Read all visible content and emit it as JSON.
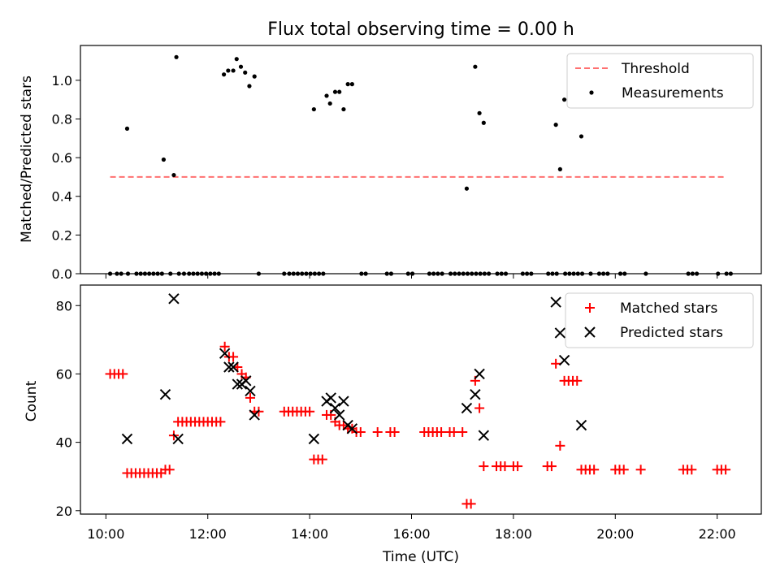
{
  "title": "Flux total observing time = 0.00 h",
  "colors": {
    "threshold": "#ff7070",
    "measurement": "#000000",
    "matched": "#ff0000",
    "predicted": "#000000"
  },
  "chart_data": [
    {
      "type": "scatter",
      "ylabel": "Matched/Predicted stars",
      "xlim": [
        "09:30",
        "22:52"
      ],
      "ylim": [
        0,
        1.18
      ],
      "yticks": [
        "0.0",
        "0.2",
        "0.4",
        "0.6",
        "0.8",
        "1.0"
      ],
      "grid": false,
      "legend_position": "top-right",
      "threshold": {
        "name": "Threshold",
        "value": 0.5,
        "x": [
          "10:05",
          "22:10"
        ],
        "style": "dashed"
      },
      "series": [
        {
          "name": "Measurements",
          "points": [
            [
              "10:05",
              0
            ],
            [
              "10:13",
              0
            ],
            [
              "10:18",
              0
            ],
            [
              "10:26",
              0
            ],
            [
              "10:36",
              0
            ],
            [
              "10:41",
              0
            ],
            [
              "10:46",
              0
            ],
            [
              "10:51",
              0
            ],
            [
              "10:56",
              0
            ],
            [
              "11:01",
              0
            ],
            [
              "11:06",
              0
            ],
            [
              "11:16",
              0
            ],
            [
              "11:26",
              0
            ],
            [
              "11:32",
              0
            ],
            [
              "11:38",
              0
            ],
            [
              "11:43",
              0
            ],
            [
              "11:48",
              0
            ],
            [
              "11:53",
              0
            ],
            [
              "11:58",
              0
            ],
            [
              "12:03",
              0
            ],
            [
              "12:08",
              0
            ],
            [
              "12:13",
              0
            ],
            [
              "13:00",
              0
            ],
            [
              "13:30",
              0
            ],
            [
              "13:36",
              0
            ],
            [
              "13:41",
              0
            ],
            [
              "13:46",
              0
            ],
            [
              "13:51",
              0
            ],
            [
              "13:56",
              0
            ],
            [
              "14:01",
              0
            ],
            [
              "14:06",
              0
            ],
            [
              "14:11",
              0
            ],
            [
              "14:16",
              0
            ],
            [
              "15:01",
              0
            ],
            [
              "15:06",
              0
            ],
            [
              "15:31",
              0
            ],
            [
              "15:36",
              0
            ],
            [
              "15:56",
              0
            ],
            [
              "16:01",
              0
            ],
            [
              "16:21",
              0
            ],
            [
              "16:26",
              0
            ],
            [
              "16:31",
              0
            ],
            [
              "16:36",
              0
            ],
            [
              "16:46",
              0
            ],
            [
              "16:51",
              0
            ],
            [
              "16:56",
              0
            ],
            [
              "17:01",
              0
            ],
            [
              "17:06",
              0
            ],
            [
              "17:11",
              0
            ],
            [
              "17:16",
              0
            ],
            [
              "17:21",
              0
            ],
            [
              "17:26",
              0
            ],
            [
              "17:31",
              0
            ],
            [
              "17:41",
              0
            ],
            [
              "17:46",
              0
            ],
            [
              "17:51",
              0
            ],
            [
              "18:11",
              0
            ],
            [
              "18:16",
              0
            ],
            [
              "18:21",
              0
            ],
            [
              "18:41",
              0
            ],
            [
              "18:46",
              0
            ],
            [
              "18:51",
              0
            ],
            [
              "19:01",
              0
            ],
            [
              "19:06",
              0
            ],
            [
              "19:11",
              0
            ],
            [
              "19:16",
              0
            ],
            [
              "19:21",
              0
            ],
            [
              "19:31",
              0
            ],
            [
              "19:41",
              0
            ],
            [
              "19:46",
              0
            ],
            [
              "19:51",
              0
            ],
            [
              "20:06",
              0
            ],
            [
              "20:11",
              0
            ],
            [
              "20:36",
              0
            ],
            [
              "21:26",
              0
            ],
            [
              "21:31",
              0
            ],
            [
              "21:36",
              0
            ],
            [
              "22:01",
              0
            ],
            [
              "22:11",
              0
            ],
            [
              "22:16",
              0
            ],
            [
              "10:25",
              0.75
            ],
            [
              "11:08",
              0.59
            ],
            [
              "11:20",
              0.51
            ],
            [
              "11:23",
              1.12
            ],
            [
              "12:19",
              1.03
            ],
            [
              "12:24",
              1.05
            ],
            [
              "12:30",
              1.05
            ],
            [
              "12:34",
              1.11
            ],
            [
              "12:39",
              1.07
            ],
            [
              "12:44",
              1.04
            ],
            [
              "12:49",
              0.97
            ],
            [
              "12:55",
              1.02
            ],
            [
              "14:05",
              0.85
            ],
            [
              "14:20",
              0.92
            ],
            [
              "14:24",
              0.88
            ],
            [
              "14:30",
              0.94
            ],
            [
              "14:35",
              0.94
            ],
            [
              "14:40",
              0.85
            ],
            [
              "14:45",
              0.98
            ],
            [
              "14:50",
              0.98
            ],
            [
              "17:05",
              0.44
            ],
            [
              "17:15",
              1.07
            ],
            [
              "17:20",
              0.83
            ],
            [
              "17:25",
              0.78
            ],
            [
              "18:50",
              0.77
            ],
            [
              "18:55",
              0.54
            ],
            [
              "19:00",
              0.9
            ],
            [
              "19:20",
              0.71
            ]
          ]
        }
      ]
    },
    {
      "type": "scatter",
      "xlabel": "Time (UTC)",
      "ylabel": "Count",
      "xlim": [
        "09:30",
        "22:52"
      ],
      "ylim": [
        19,
        86
      ],
      "xticks": [
        "10:00",
        "12:00",
        "14:00",
        "16:00",
        "18:00",
        "20:00",
        "22:00"
      ],
      "yticks": [
        "20",
        "40",
        "60",
        "80"
      ],
      "grid": false,
      "legend_position": "top-right",
      "series": [
        {
          "name": "Matched stars",
          "marker": "+",
          "points": [
            [
              "10:05",
              60
            ],
            [
              "10:10",
              60
            ],
            [
              "10:15",
              60
            ],
            [
              "10:20",
              60
            ],
            [
              "10:25",
              31
            ],
            [
              "10:30",
              31
            ],
            [
              "10:35",
              31
            ],
            [
              "10:40",
              31
            ],
            [
              "10:45",
              31
            ],
            [
              "10:50",
              31
            ],
            [
              "10:55",
              31
            ],
            [
              "11:00",
              31
            ],
            [
              "11:05",
              31
            ],
            [
              "11:10",
              32
            ],
            [
              "11:15",
              32
            ],
            [
              "11:20",
              42
            ],
            [
              "11:25",
              46
            ],
            [
              "11:30",
              46
            ],
            [
              "11:35",
              46
            ],
            [
              "11:40",
              46
            ],
            [
              "11:45",
              46
            ],
            [
              "11:50",
              46
            ],
            [
              "11:55",
              46
            ],
            [
              "12:00",
              46
            ],
            [
              "12:05",
              46
            ],
            [
              "12:10",
              46
            ],
            [
              "12:15",
              46
            ],
            [
              "12:20",
              68
            ],
            [
              "12:25",
              65
            ],
            [
              "12:30",
              65
            ],
            [
              "12:35",
              62
            ],
            [
              "12:40",
              60
            ],
            [
              "12:45",
              59
            ],
            [
              "12:50",
              53
            ],
            [
              "12:55",
              49
            ],
            [
              "13:00",
              49
            ],
            [
              "13:30",
              49
            ],
            [
              "13:35",
              49
            ],
            [
              "13:40",
              49
            ],
            [
              "13:45",
              49
            ],
            [
              "13:50",
              49
            ],
            [
              "13:55",
              49
            ],
            [
              "14:00",
              49
            ],
            [
              "14:05",
              35
            ],
            [
              "14:10",
              35
            ],
            [
              "14:15",
              35
            ],
            [
              "14:20",
              48
            ],
            [
              "14:25",
              48
            ],
            [
              "14:30",
              46
            ],
            [
              "14:35",
              45
            ],
            [
              "14:40",
              45
            ],
            [
              "14:45",
              44
            ],
            [
              "14:50",
              44
            ],
            [
              "14:55",
              43
            ],
            [
              "15:00",
              43
            ],
            [
              "15:20",
              43
            ],
            [
              "15:35",
              43
            ],
            [
              "15:40",
              43
            ],
            [
              "16:15",
              43
            ],
            [
              "16:20",
              43
            ],
            [
              "16:25",
              43
            ],
            [
              "16:30",
              43
            ],
            [
              "16:35",
              43
            ],
            [
              "16:45",
              43
            ],
            [
              "16:50",
              43
            ],
            [
              "17:00",
              43
            ],
            [
              "17:05",
              22
            ],
            [
              "17:10",
              22
            ],
            [
              "17:15",
              58
            ],
            [
              "17:20",
              50
            ],
            [
              "17:25",
              33
            ],
            [
              "17:40",
              33
            ],
            [
              "17:45",
              33
            ],
            [
              "17:50",
              33
            ],
            [
              "18:00",
              33
            ],
            [
              "18:05",
              33
            ],
            [
              "18:40",
              33
            ],
            [
              "18:45",
              33
            ],
            [
              "18:50",
              63
            ],
            [
              "18:55",
              39
            ],
            [
              "19:00",
              58
            ],
            [
              "19:05",
              58
            ],
            [
              "19:10",
              58
            ],
            [
              "19:15",
              58
            ],
            [
              "19:20",
              32
            ],
            [
              "19:25",
              32
            ],
            [
              "19:30",
              32
            ],
            [
              "19:35",
              32
            ],
            [
              "20:00",
              32
            ],
            [
              "20:05",
              32
            ],
            [
              "20:10",
              32
            ],
            [
              "20:30",
              32
            ],
            [
              "21:20",
              32
            ],
            [
              "21:25",
              32
            ],
            [
              "21:30",
              32
            ],
            [
              "22:00",
              32
            ],
            [
              "22:05",
              32
            ],
            [
              "22:10",
              32
            ]
          ]
        },
        {
          "name": "Predicted stars",
          "marker": "x",
          "points": [
            [
              "10:25",
              41
            ],
            [
              "11:10",
              54
            ],
            [
              "11:20",
              82
            ],
            [
              "11:25",
              41
            ],
            [
              "12:20",
              66
            ],
            [
              "12:25",
              62
            ],
            [
              "12:30",
              62
            ],
            [
              "12:35",
              57
            ],
            [
              "12:40",
              57
            ],
            [
              "12:45",
              58
            ],
            [
              "12:50",
              55
            ],
            [
              "12:55",
              48
            ],
            [
              "14:05",
              41
            ],
            [
              "14:20",
              52
            ],
            [
              "14:25",
              53
            ],
            [
              "14:30",
              50
            ],
            [
              "14:35",
              48
            ],
            [
              "14:40",
              52
            ],
            [
              "14:45",
              45
            ],
            [
              "14:50",
              44
            ],
            [
              "17:05",
              50
            ],
            [
              "17:15",
              54
            ],
            [
              "17:20",
              60
            ],
            [
              "17:25",
              42
            ],
            [
              "18:50",
              81
            ],
            [
              "18:55",
              72
            ],
            [
              "19:00",
              64
            ],
            [
              "19:20",
              45
            ]
          ]
        }
      ]
    }
  ]
}
